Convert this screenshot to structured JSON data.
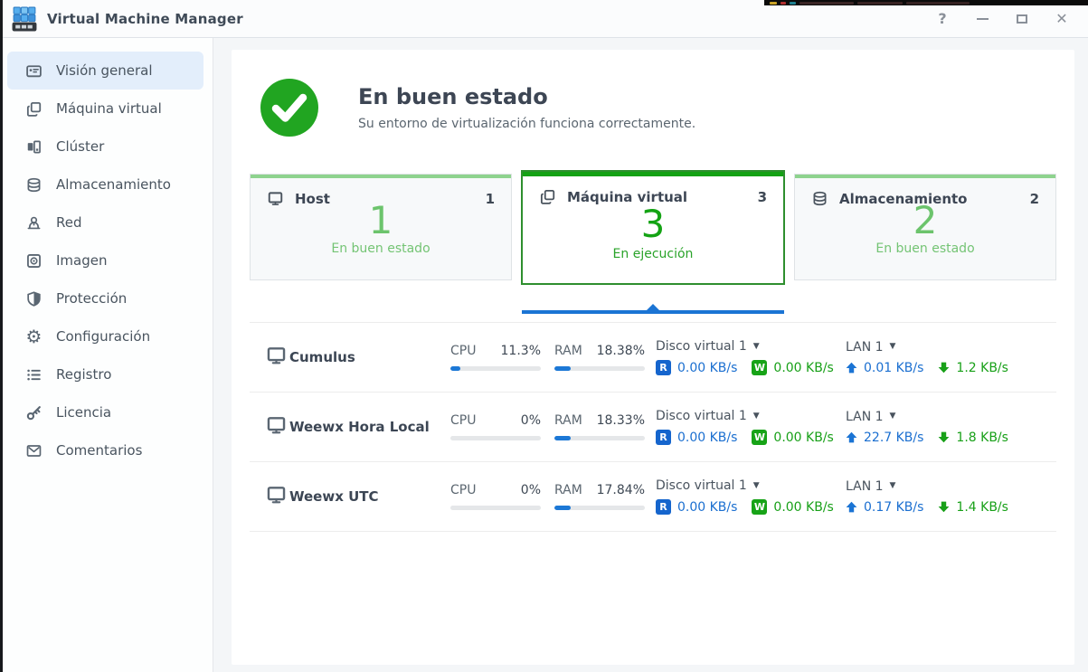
{
  "window": {
    "title": "Virtual Machine Manager",
    "controls": {
      "help": "?",
      "close": "✕"
    }
  },
  "sidebar": {
    "items": [
      {
        "label": "Visión general",
        "icon": "overview-icon",
        "active": true
      },
      {
        "label": "Máquina virtual",
        "icon": "virtual-machine-icon",
        "active": false
      },
      {
        "label": "Clúster",
        "icon": "cluster-icon",
        "active": false
      },
      {
        "label": "Almacenamiento",
        "icon": "storage-icon",
        "active": false
      },
      {
        "label": "Red",
        "icon": "network-icon",
        "active": false
      },
      {
        "label": "Imagen",
        "icon": "image-icon",
        "active": false
      },
      {
        "label": "Protección",
        "icon": "shield-icon",
        "active": false
      },
      {
        "label": "Configuración",
        "icon": "gear-icon",
        "active": false
      },
      {
        "label": "Registro",
        "icon": "log-list-icon",
        "active": false
      },
      {
        "label": "Licencia",
        "icon": "key-icon",
        "active": false
      },
      {
        "label": "Comentarios",
        "icon": "envelope-icon",
        "active": false
      }
    ]
  },
  "overview": {
    "header": {
      "title": "En buen estado",
      "subtitle": "Su entorno de virtualización funciona correctamente."
    },
    "cards": [
      {
        "title": "Host",
        "count": "1",
        "big_value": "1",
        "status": "En buen estado",
        "icon": "monitor-icon",
        "selected": false
      },
      {
        "title": "Máquina virtual",
        "count": "3",
        "big_value": "3",
        "status": "En ejecución",
        "icon": "virtual-machine-icon",
        "selected": true
      },
      {
        "title": "Almacenamiento",
        "count": "2",
        "big_value": "2",
        "status": "En buen estado",
        "icon": "storage-icon",
        "selected": false
      }
    ],
    "labels": {
      "cpu": "CPU",
      "ram": "RAM",
      "read_badge": "R",
      "write_badge": "W"
    },
    "vms": [
      {
        "name": "Cumulus",
        "cpu_value": "11.3%",
        "cpu_pct": 11.3,
        "ram_value": "18.38%",
        "ram_pct": 18.38,
        "disk_label": "Disco virtual 1",
        "read_value": "0.00 KB/s",
        "write_value": "0.00 KB/s",
        "lan_label": "LAN 1",
        "up_value": "0.01 KB/s",
        "down_value": "1.2 KB/s"
      },
      {
        "name": "Weewx Hora Local",
        "cpu_value": "0%",
        "cpu_pct": 0,
        "ram_value": "18.33%",
        "ram_pct": 18.33,
        "disk_label": "Disco virtual 1",
        "read_value": "0.00 KB/s",
        "write_value": "0.00 KB/s",
        "lan_label": "LAN 1",
        "up_value": "22.7 KB/s",
        "down_value": "1.8 KB/s"
      },
      {
        "name": "Weewx UTC",
        "cpu_value": "0%",
        "cpu_pct": 0,
        "ram_value": "17.84%",
        "ram_pct": 17.84,
        "disk_label": "Disco virtual 1",
        "read_value": "0.00 KB/s",
        "write_value": "0.00 KB/s",
        "lan_label": "LAN 1",
        "up_value": "0.17 KB/s",
        "down_value": "1.4 KB/s"
      }
    ]
  },
  "colors": {
    "accent_blue": "#1b74d4",
    "healthy_green": "#14a314",
    "read_blue": "#1565cd",
    "write_green": "#17a317",
    "card_topbar_green": "#8ed38e"
  }
}
